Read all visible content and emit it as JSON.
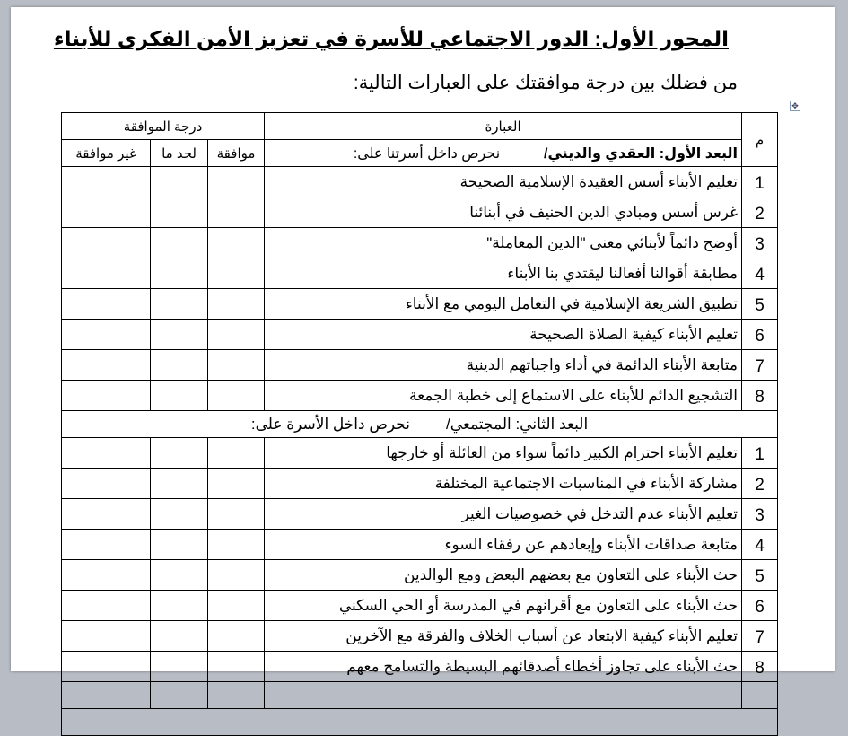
{
  "title": "المحور الأول: الدور الاجتماعي للأسرة في تعزيز الأمن الفكرى للأبناء",
  "instruction": "من فضلك بين درجة موافقتك على العبارات التالية:",
  "table": {
    "headers": {
      "number": "م",
      "statement": "العبارة",
      "agreement": "درجة الموافقة",
      "agree": "موافقة",
      "somewhat": "لحد ما",
      "disagree": "غير موافقة"
    },
    "sections": [
      {
        "title": "البعد الأول: العقدي والديني/",
        "lead": "نحرص داخل أسرتنا على:",
        "items": [
          {
            "n": "1",
            "text": "تعليم الأبناء أسس العقيدة الإسلامية الصحيحة"
          },
          {
            "n": "2",
            "text": "غرس أسس ومبادي الدين الحنيف في أبنائنا"
          },
          {
            "n": "3",
            "text": "أوضح دائماً لأبنائي معنى \"الدين المعاملة\""
          },
          {
            "n": "4",
            "text": "مطابقة أقوالنا أفعالنا ليقتدي بنا الأبناء"
          },
          {
            "n": "5",
            "text": "تطبيق الشريعة الإسلامية في التعامل اليومي مع الأبناء"
          },
          {
            "n": "6",
            "text": "تعليم الأبناء كيفية الصلاة الصحيحة"
          },
          {
            "n": "7",
            "text": "متابعة الأبناء الدائمة في أداء واجباتهم الدينية"
          },
          {
            "n": "8",
            "text": "التشجيع الدائم للأبناء على الاستماع إلى خطبة الجمعة"
          }
        ]
      },
      {
        "title": "البعد الثاني: المجتمعي/",
        "lead": "نحرص داخل الأسرة على:",
        "items": [
          {
            "n": "1",
            "text": "تعليم الأبناء احترام الكبير دائماً سواء من العائلة أو خارجها"
          },
          {
            "n": "2",
            "text": "مشاركة الأبناء في المناسبات الاجتماعية المختلفة"
          },
          {
            "n": "3",
            "text": "تعليم الأبناء عدم التدخل في خصوصيات الغير"
          },
          {
            "n": "4",
            "text": "متابعة صداقات الأبناء وإبعادهم عن رفقاء السوء"
          },
          {
            "n": "5",
            "text": "حث الأبناء على التعاون مع بعضهم البعض ومع الوالدين"
          },
          {
            "n": "6",
            "text": "حث الأبناء على التعاون مع أقرانهم في المدرسة أو الحي السكني"
          },
          {
            "n": "7",
            "text": "تعليم الأبناء كيفية الابتعاد عن أسباب الخلاف والفرقة مع الآخرين"
          },
          {
            "n": "8",
            "text": "حث الأبناء على تجاوز أخطاء أصدقائهم البسيطة والتسامح معهم"
          }
        ]
      }
    ]
  }
}
